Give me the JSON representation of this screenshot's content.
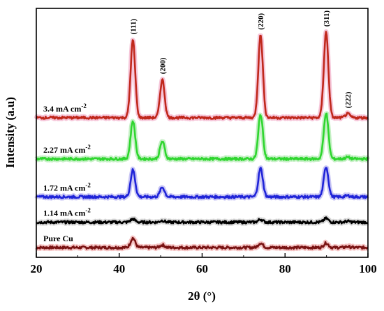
{
  "chart_data": {
    "type": "line",
    "xlabel": "2θ (°)",
    "ylabel": "Intensity (a.u)",
    "xlim": [
      20,
      100
    ],
    "x_ticks": [
      20,
      40,
      60,
      80,
      100
    ],
    "y_ticks_shown": false,
    "grid": false,
    "legend": "inline labels above each trace",
    "peak_labels": [
      {
        "text": "(111)",
        "x": 43.3
      },
      {
        "text": "(200)",
        "x": 50.4
      },
      {
        "text": "(220)",
        "x": 74.1
      },
      {
        "text": "(311)",
        "x": 89.9
      },
      {
        "text": "(222)",
        "x": 95.1
      }
    ],
    "series": [
      {
        "name": "Pure Cu",
        "label_main": "Pure Cu",
        "label_sup": "",
        "color": "#7a1414",
        "glow": "#f4c2c2",
        "baseline": 0.0,
        "peaks": [
          {
            "x": 43.3,
            "height": 0.3
          },
          {
            "x": 50.4,
            "height": 0.08
          },
          {
            "x": 74.1,
            "height": 0.14
          },
          {
            "x": 89.9,
            "height": 0.14
          },
          {
            "x": 95.1,
            "height": 0.03
          }
        ]
      },
      {
        "name": "1.14 mA cm-2",
        "label_main": "1.14 mA cm",
        "label_sup": "-2",
        "color": "#000000",
        "glow": "#d9d9d9",
        "baseline": 0.8,
        "peaks": [
          {
            "x": 43.3,
            "height": 0.1
          },
          {
            "x": 50.4,
            "height": 0.05
          },
          {
            "x": 74.1,
            "height": 0.09
          },
          {
            "x": 89.9,
            "height": 0.12
          },
          {
            "x": 95.1,
            "height": 0.03
          }
        ]
      },
      {
        "name": "1.72 mA cm-2",
        "label_main": "1.72 mA cm",
        "label_sup": "-2",
        "color": "#1f24d8",
        "glow": "#c9c6f5",
        "baseline": 1.6,
        "peaks": [
          {
            "x": 43.3,
            "height": 0.85
          },
          {
            "x": 50.4,
            "height": 0.3
          },
          {
            "x": 74.1,
            "height": 0.9
          },
          {
            "x": 89.9,
            "height": 0.95
          },
          {
            "x": 95.1,
            "height": 0.04
          }
        ]
      },
      {
        "name": "2.27 mA cm-2",
        "label_main": "2.27 mA cm",
        "label_sup": "-2",
        "color": "#2fd62f",
        "glow": "#c5f0c5",
        "baseline": 2.8,
        "peaks": [
          {
            "x": 43.3,
            "height": 1.2
          },
          {
            "x": 50.4,
            "height": 0.55
          },
          {
            "x": 74.1,
            "height": 1.4
          },
          {
            "x": 89.9,
            "height": 1.45
          },
          {
            "x": 95.1,
            "height": 0.05
          }
        ]
      },
      {
        "name": "3.4 mA cm-2",
        "label_main": "3.4 mA cm",
        "label_sup": "-2",
        "color": "#c0281c",
        "glow": "#f6c6d9",
        "baseline": 4.1,
        "peaks": [
          {
            "x": 43.3,
            "height": 2.45
          },
          {
            "x": 50.4,
            "height": 1.2
          },
          {
            "x": 74.1,
            "height": 2.6
          },
          {
            "x": 89.9,
            "height": 2.7
          },
          {
            "x": 95.1,
            "height": 0.12
          }
        ]
      }
    ]
  }
}
